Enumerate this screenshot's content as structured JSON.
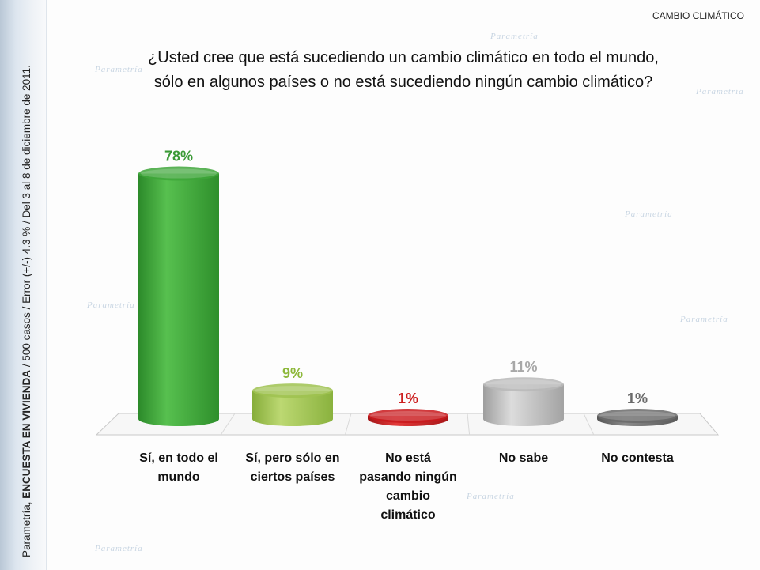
{
  "header": {
    "tag": "CAMBIO CLIMÁTICO"
  },
  "question": {
    "line1": "¿Usted cree que está sucediendo un cambio climático en todo el mundo,",
    "line2": "sólo en algunos países o no está sucediendo ningún cambio climático?"
  },
  "side": {
    "prefix": "Parametría, ",
    "bold": "ENCUESTA EN VIVIENDA",
    "suffix": " / 500 casos / Error (+/-) 4.3 % / Del 3 al 8 de diciembre de 2011."
  },
  "watermark": {
    "brand": "Parametría"
  },
  "colors": {
    "green": "#3ea63a",
    "light_green": "#9fc250",
    "red": "#c9191c",
    "gray": "#b8b8b8",
    "dark_gray": "#6a6a6a"
  },
  "chart_data": {
    "type": "bar",
    "categories": [
      [
        "Sí, en todo el",
        "mundo"
      ],
      [
        "Sí, pero sólo en",
        "ciertos países"
      ],
      [
        "No está",
        "pasando ningún",
        "cambio",
        "climático"
      ],
      [
        "No sabe"
      ],
      [
        "No contesta"
      ]
    ],
    "values": [
      78,
      9,
      1,
      11,
      1
    ],
    "labels": [
      "78%",
      "9%",
      "1%",
      "11%",
      "1%"
    ],
    "bar_colors": [
      "green",
      "light_green",
      "red",
      "gray",
      "dark_gray"
    ],
    "label_colors": [
      "#3b9a37",
      "#8db83a",
      "#cc1f1f",
      "#a8a8a8",
      "#6a6a6a"
    ],
    "ylim": [
      0,
      100
    ]
  }
}
